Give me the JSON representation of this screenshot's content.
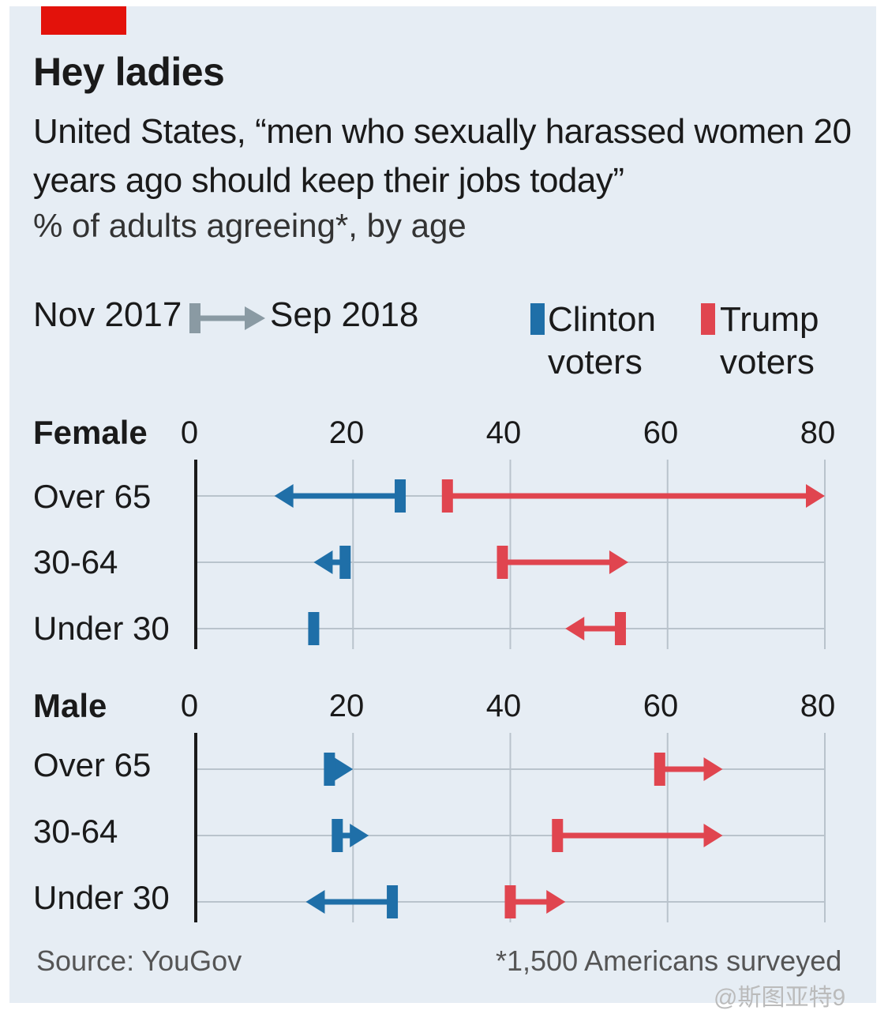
{
  "title": "Hey ladies",
  "subtitle": "United States, “men who sexually harassed women 20 years ago should keep their jobs today”",
  "unit_note": "% of adults agreeing*, by age",
  "legend": {
    "from": "Nov 2017",
    "to": "Sep 2018",
    "clinton": "Clinton voters",
    "trump": "Trump voters"
  },
  "source": "Source: YouGov",
  "footnote": "*1,500 Americans surveyed",
  "watermark": "@斯图亚特9",
  "colors": {
    "clinton": "#1f6fa8",
    "trump": "#e0454f",
    "grid": "#b9c3cc",
    "axis": "#1a1a1a",
    "legend_arrow": "#8a9aa3",
    "brand": "#e3120b"
  },
  "chart_data": {
    "type": "dumbbell-arrow",
    "xlim": [
      0,
      80
    ],
    "ticks": [
      "0",
      "20",
      "40",
      "60",
      "80"
    ],
    "panels": [
      {
        "label": "Female",
        "rows": [
          {
            "label": "Over 65",
            "clinton": {
              "from": 26,
              "to": 10
            },
            "trump": {
              "from": 32,
              "to": 80
            }
          },
          {
            "label": "30-64",
            "clinton": {
              "from": 19,
              "to": 15
            },
            "trump": {
              "from": 39,
              "to": 55
            }
          },
          {
            "label": "Under 30",
            "clinton": {
              "from": 15,
              "to": 15
            },
            "trump": {
              "from": 54,
              "to": 47
            }
          }
        ]
      },
      {
        "label": "Male",
        "rows": [
          {
            "label": "Over 65",
            "clinton": {
              "from": 17,
              "to": 20
            },
            "trump": {
              "from": 59,
              "to": 67
            }
          },
          {
            "label": "30-64",
            "clinton": {
              "from": 18,
              "to": 22
            },
            "trump": {
              "from": 46,
              "to": 67
            }
          },
          {
            "label": "Under 30",
            "clinton": {
              "from": 25,
              "to": 14
            },
            "trump": {
              "from": 40,
              "to": 47
            }
          }
        ]
      }
    ]
  }
}
